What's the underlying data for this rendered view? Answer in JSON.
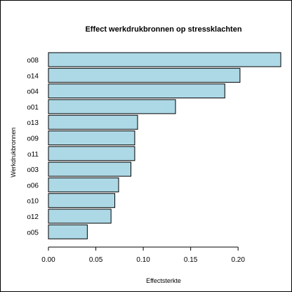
{
  "chart_data": {
    "type": "bar",
    "orientation": "horizontal",
    "title": "Effect werkdrukbronnen op stressklachten",
    "xlabel": "Effectsterkte",
    "ylabel": "Werkdrukbronnen",
    "categories": [
      "o08",
      "o14",
      "o04",
      "o01",
      "o13",
      "o09",
      "o11",
      "o03",
      "o06",
      "o10",
      "o12",
      "o05"
    ],
    "values": [
      0.268,
      0.202,
      0.186,
      0.134,
      0.094,
      0.091,
      0.091,
      0.087,
      0.074,
      0.07,
      0.066,
      0.041
    ],
    "xlim": [
      0,
      0.245
    ],
    "xticks": [
      0.0,
      0.05,
      0.1,
      0.15,
      0.2
    ],
    "xtick_labels": [
      "0.00",
      "0.05",
      "0.10",
      "0.15",
      "0.20"
    ],
    "bar_color": "#add8e6",
    "bar_edge_color": "#000000",
    "grid": false,
    "legend": "none"
  }
}
